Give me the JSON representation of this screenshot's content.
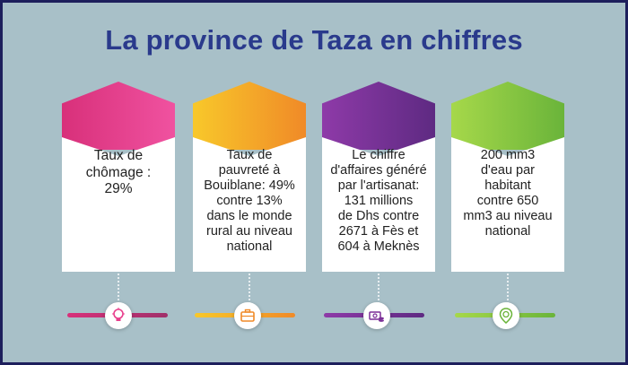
{
  "title": "La province de Taza en chiffres",
  "cards": [
    {
      "text": "Taux de\nchômage :\n29%",
      "color": "#e83e8c",
      "icon": "lightbulb-icon"
    },
    {
      "text": "Taux de\npauvreté à\nBouiblane: 49%\ncontre 13%\ndans le monde\nrural au niveau\nnational",
      "color": "#f5a32a",
      "icon": "briefcase-icon"
    },
    {
      "text": "Le chiffre\nd'affaires généré\npar l'artisanat:\n131 millions\nde Dhs contre\n2671 à Fès et\n604 à Meknès",
      "color": "#7b2f97",
      "icon": "money-icon"
    },
    {
      "text": "200 mm3\nd'eau par\nhabitant\ncontre 650\nmm3 au niveau\nnational",
      "color": "#8cc63f",
      "icon": "water-pin-icon"
    }
  ]
}
